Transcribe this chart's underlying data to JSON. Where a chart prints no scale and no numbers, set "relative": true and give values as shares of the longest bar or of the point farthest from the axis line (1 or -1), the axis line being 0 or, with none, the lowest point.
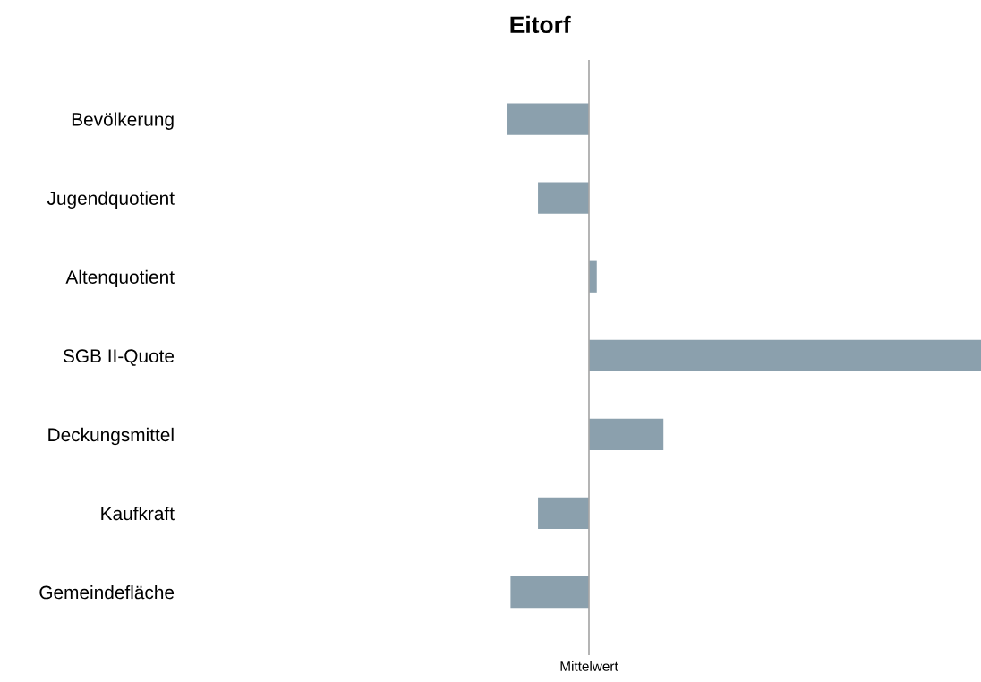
{
  "chart_data": {
    "type": "bar",
    "orientation": "horizontal",
    "relative": true,
    "title": "Eitorf",
    "categories": [
      "Bevölkerung",
      "Jugendquotient",
      "Altenquotient",
      "SGB II-Quote",
      "Deckungsmittel",
      "Kaufkraft",
      "Gemeindefläche"
    ],
    "values": [
      -0.21,
      -0.13,
      0.02,
      1,
      0.19,
      -0.13,
      -0.2
    ],
    "color": "#8ba0ad",
    "ref_lines": [
      {
        "axis": "x",
        "value": 0,
        "label": "Mittelwert",
        "color": "#a6a6a6"
      }
    ],
    "grid": false,
    "legend": false
  }
}
